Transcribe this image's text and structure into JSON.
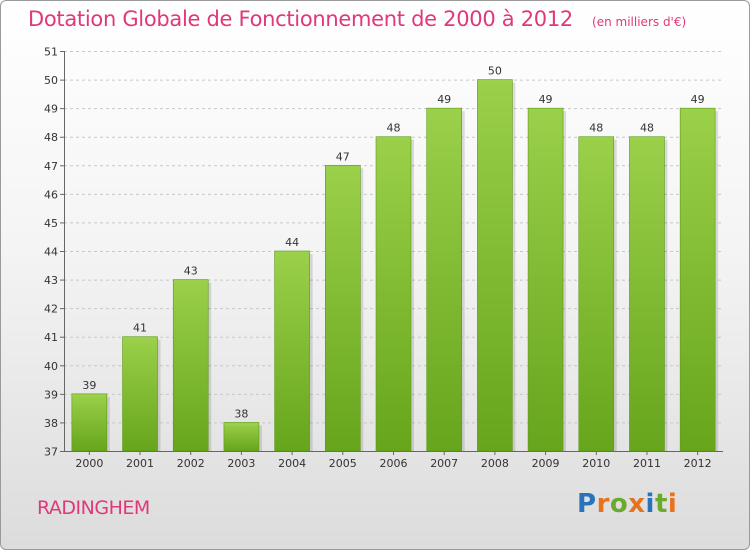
{
  "chart_data": {
    "type": "bar",
    "title": "Dotation Globale de Fonctionnement de 2000 à 2012",
    "subtitle": "(en milliers d'€)",
    "categories": [
      "2000",
      "2001",
      "2002",
      "2003",
      "2004",
      "2005",
      "2006",
      "2007",
      "2008",
      "2009",
      "2010",
      "2011",
      "2012"
    ],
    "values": [
      39,
      41,
      43,
      38,
      44,
      47,
      48,
      49,
      50,
      49,
      48,
      48,
      49
    ],
    "data_labels": [
      "39",
      "41",
      "43",
      "38",
      "44",
      "47",
      "48",
      "49",
      "50",
      "49",
      "48",
      "48",
      "49"
    ],
    "ylim": [
      37,
      51
    ],
    "yticks": [
      "37",
      "38",
      "39",
      "40",
      "41",
      "42",
      "43",
      "44",
      "45",
      "46",
      "47",
      "48",
      "49",
      "50",
      "51"
    ],
    "xlabel": "",
    "ylabel": "",
    "grid": true,
    "bar_color": "#7fbf2e",
    "bar_highlight": "#9bd04a",
    "bar_shadow": "#5e9a17"
  },
  "commune": "RADINGHEM",
  "logo": {
    "letters": [
      "P",
      "r",
      "o",
      "x",
      "i",
      "t",
      "i"
    ],
    "colors": [
      "#2a73b8",
      "#e8731e",
      "#6aab2e",
      "#e8731e",
      "#2a73b8",
      "#6aab2e",
      "#e8731e"
    ]
  }
}
